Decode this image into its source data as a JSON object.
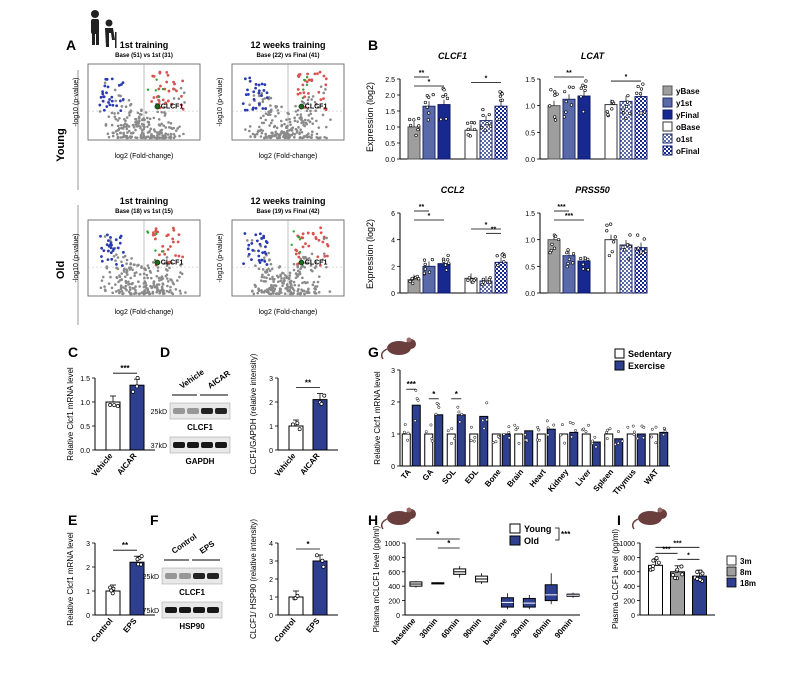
{
  "panels": {
    "A": "A",
    "B": "B",
    "C": "C",
    "D": "D",
    "E": "E",
    "F": "F",
    "G": "G",
    "H": "H",
    "I": "I"
  },
  "panel_a": {
    "row_labels": [
      "Young",
      "Old"
    ],
    "ylabel": "-log10 (p-value)",
    "xlabel": "log2 (Fold-change)",
    "plots": [
      {
        "title": "1st training",
        "subtitle": "Base (51)  vs  1st (31)",
        "gene": "CLCF1"
      },
      {
        "title": "12 weeks training",
        "subtitle": "Base (22)  vs  Final (41)",
        "gene": "CLCF1"
      },
      {
        "title": "1st training",
        "subtitle": "Base (18)  vs  1st (15)",
        "gene": "CLCF1"
      },
      {
        "title": "12 weeks training",
        "subtitle": "Base (19)  vs  Final (42)",
        "gene": "CLCF1"
      }
    ]
  },
  "panel_b": {
    "ylabel": "Expression (log2)",
    "legend": [
      "yBase",
      "y1st",
      "yFinal",
      "oBase",
      "o1st",
      "oFinal"
    ],
    "colors": {
      "ybase": "#9e9e9e",
      "y1st": "#5a69a8",
      "yfinal": "#17298f",
      "open": "#ffffff"
    },
    "charts": [
      {
        "title": "CLCF1",
        "ymin": 0,
        "ymax": 2.5,
        "ticks": [
          "0.0",
          "0.5",
          "1.0",
          "1.5",
          "2.0",
          "2.5"
        ],
        "values": [
          1.0,
          1.65,
          1.7,
          0.9,
          1.2,
          1.65
        ],
        "sig": [
          "**",
          "*",
          "*"
        ]
      },
      {
        "title": "LCAT",
        "ymin": 0,
        "ymax": 1.5,
        "ticks": [
          "0.0",
          "0.5",
          "1.0",
          "1.5"
        ],
        "values": [
          1.0,
          1.12,
          1.18,
          1.02,
          1.08,
          1.17
        ],
        "sig": [
          "**",
          "*"
        ]
      },
      {
        "title": "CCL2",
        "ymin": 0,
        "ymax": 6,
        "ticks": [
          "0",
          "2",
          "4",
          "6"
        ],
        "values": [
          1.0,
          2.0,
          2.2,
          1.1,
          0.9,
          2.3
        ],
        "sig": [
          "**",
          "*",
          "*",
          "**"
        ]
      },
      {
        "title": "PRSS50",
        "ymin": 0,
        "ymax": 1.5,
        "ticks": [
          "0.0",
          "0.5",
          "1.0",
          "1.5"
        ],
        "values": [
          1.0,
          0.7,
          0.6,
          1.0,
          0.9,
          0.85
        ],
        "sig": [
          "***",
          "***"
        ]
      }
    ]
  },
  "panel_c": {
    "ylabel": "Relative Clcf1 mRNA level",
    "ticks": [
      "0.0",
      "0.5",
      "1.0",
      "1.5"
    ],
    "categories": [
      "Vehicle",
      "AICAR"
    ],
    "values": [
      1.0,
      1.35
    ],
    "sig": "***",
    "ymax": 1.5
  },
  "panel_d": {
    "lanes": [
      "Vehicle",
      "AICAR"
    ],
    "bands": [
      "CLCF1",
      "GAPDH"
    ],
    "mw": [
      "25kD",
      "37kD"
    ],
    "ylabel": "CLCF1/GAPDH (relative intensity)",
    "ticks": [
      "0",
      "1",
      "2",
      "3"
    ],
    "categories": [
      "Vehicle",
      "AICAR"
    ],
    "values": [
      1.0,
      2.1
    ],
    "sig": "**",
    "ymax": 3
  },
  "panel_e": {
    "ylabel": "Relative Clcf1 mRNA level",
    "ticks": [
      "0",
      "1",
      "2",
      "3"
    ],
    "categories": [
      "Control",
      "EPS"
    ],
    "values": [
      1.0,
      2.2
    ],
    "sig": "**",
    "ymax": 3
  },
  "panel_f": {
    "lanes": [
      "Control",
      "EPS"
    ],
    "bands": [
      "CLCF1",
      "HSP90"
    ],
    "mw": [
      "25kD",
      "75kD"
    ],
    "ylabel": "CLCF1/ HSP90 (relative intensity)",
    "ticks": [
      "0",
      "1",
      "2",
      "3",
      "4"
    ],
    "categories": [
      "Control",
      "EPS"
    ],
    "values": [
      1.0,
      3.0
    ],
    "sig": "*",
    "ymax": 4
  },
  "panel_g": {
    "ylabel": "Relative Clcf1 mRNA level",
    "ticks": [
      "0",
      "1",
      "2",
      "3"
    ],
    "ymax": 3,
    "legend": [
      "Sedentary",
      "Exercise"
    ],
    "categories": [
      "TA",
      "GA",
      "SOL",
      "EDL",
      "Bone",
      "Brain",
      "Heart",
      "Kidney",
      "Liver",
      "Spleen",
      "Thymus",
      "WAT"
    ],
    "sedentary": [
      1.0,
      1.0,
      1.0,
      1.0,
      1.0,
      1.0,
      1.0,
      1.0,
      1.0,
      1.0,
      1.0,
      1.0
    ],
    "exercise": [
      1.9,
      1.6,
      1.6,
      1.55,
      1.0,
      1.1,
      1.15,
      1.05,
      0.75,
      0.85,
      1.0,
      1.05
    ],
    "sig": [
      "***",
      "*",
      "*"
    ]
  },
  "panel_h": {
    "ylabel": "Plasma mCLCF1 level (pg/ml)",
    "ticks": [
      "0",
      "200",
      "400",
      "600",
      "800",
      "1000"
    ],
    "ymax": 1000,
    "legend": [
      "Young",
      "Old"
    ],
    "legend_sig": "***",
    "categories": [
      "baseline",
      "30min",
      "60min",
      "90min",
      "baseline",
      "30min",
      "60min",
      "90min"
    ],
    "boxes": [
      [
        380,
        400,
        430,
        460,
        470
      ],
      [
        425,
        432,
        440,
        448,
        455
      ],
      [
        520,
        565,
        600,
        640,
        680
      ],
      [
        430,
        460,
        500,
        540,
        580
      ],
      [
        80,
        110,
        175,
        240,
        300
      ],
      [
        80,
        110,
        165,
        230,
        280
      ],
      [
        150,
        200,
        280,
        420,
        580
      ],
      [
        240,
        260,
        275,
        290,
        310
      ]
    ],
    "sig": [
      "*",
      "*"
    ]
  },
  "panel_i": {
    "ylabel": "Plasma CLCF1 level (pg/ml)",
    "ticks": [
      "0",
      "200",
      "400",
      "600",
      "800",
      "1000"
    ],
    "ymax": 1000,
    "legend": [
      "3m",
      "8m",
      "18m"
    ],
    "values": [
      690,
      600,
      540
    ],
    "sig": [
      "***",
      "***",
      "*"
    ]
  }
}
